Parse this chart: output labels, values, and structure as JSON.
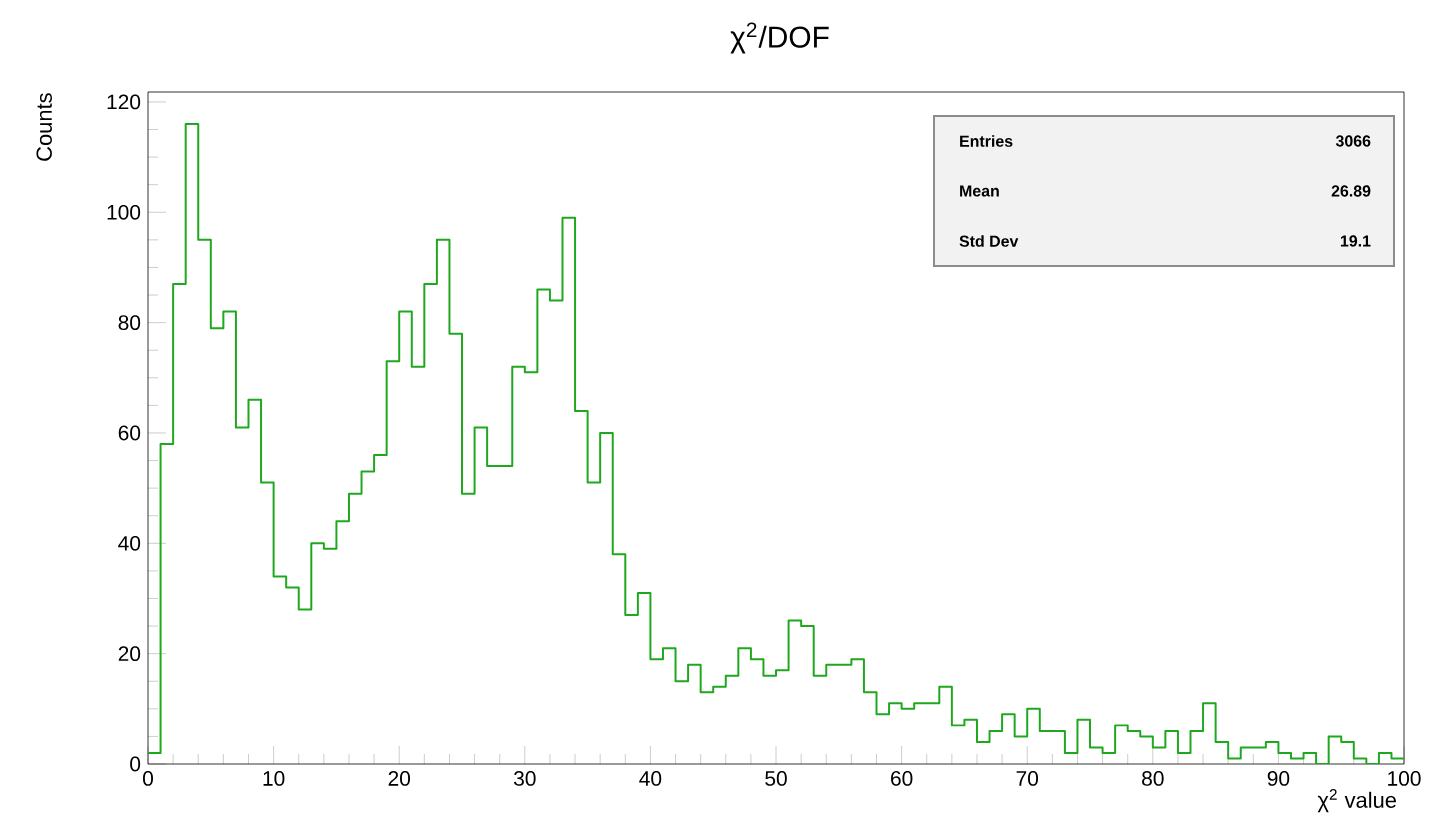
{
  "chart_data": {
    "type": "histogram",
    "title": "χ$^{2}$/DOF",
    "xlabel": "χ$^{2}$ value",
    "ylabel": "Counts",
    "bins": [
      0,
      1,
      2,
      3,
      4,
      5,
      6,
      7,
      8,
      9,
      10,
      11,
      12,
      13,
      14,
      15,
      16,
      17,
      18,
      19,
      20,
      21,
      22,
      23,
      24,
      25,
      26,
      27,
      28,
      29,
      30,
      31,
      32,
      33,
      34,
      35,
      36,
      37,
      38,
      39,
      40,
      41,
      42,
      43,
      44,
      45,
      46,
      47,
      48,
      49,
      50,
      51,
      52,
      53,
      54,
      55,
      56,
      57,
      58,
      59,
      60,
      61,
      62,
      63,
      64,
      65,
      66,
      67,
      68,
      69,
      70,
      71,
      72,
      73,
      74,
      75,
      76,
      77,
      78,
      79,
      80,
      81,
      82,
      83,
      84,
      85,
      86,
      87,
      88,
      89,
      90,
      91,
      92,
      93,
      94,
      95,
      96,
      97,
      98,
      99,
      100
    ],
    "values": [
      2,
      58,
      87,
      116,
      95,
      79,
      82,
      61,
      66,
      51,
      34,
      32,
      28,
      40,
      39,
      44,
      49,
      53,
      56,
      73,
      82,
      72,
      87,
      95,
      78,
      49,
      61,
      54,
      54,
      72,
      71,
      86,
      84,
      99,
      64,
      51,
      60,
      38,
      27,
      31,
      19,
      21,
      15,
      18,
      13,
      14,
      16,
      21,
      19,
      16,
      17,
      26,
      25,
      16,
      18,
      18,
      19,
      13,
      9,
      11,
      10,
      11,
      11,
      14,
      7,
      8,
      4,
      6,
      9,
      5,
      10,
      6,
      6,
      2,
      8,
      3,
      2,
      7,
      6,
      5,
      3,
      6,
      2,
      6,
      11,
      4,
      1,
      3,
      3,
      4,
      2,
      1,
      2,
      0,
      5,
      4,
      1,
      0,
      2,
      1
    ],
    "color": "#1fa81f",
    "xlim": [
      0,
      100
    ],
    "ylim": [
      0,
      121.8
    ],
    "xticks": [
      0,
      10,
      20,
      30,
      40,
      50,
      60,
      70,
      80,
      90,
      100
    ],
    "yticks": [
      0,
      20,
      40,
      60,
      80,
      100,
      120
    ],
    "grid": false,
    "annotations": [
      "Entries",
      "3066",
      "Mean",
      "26.89",
      "Std Dev",
      "19.1"
    ]
  }
}
